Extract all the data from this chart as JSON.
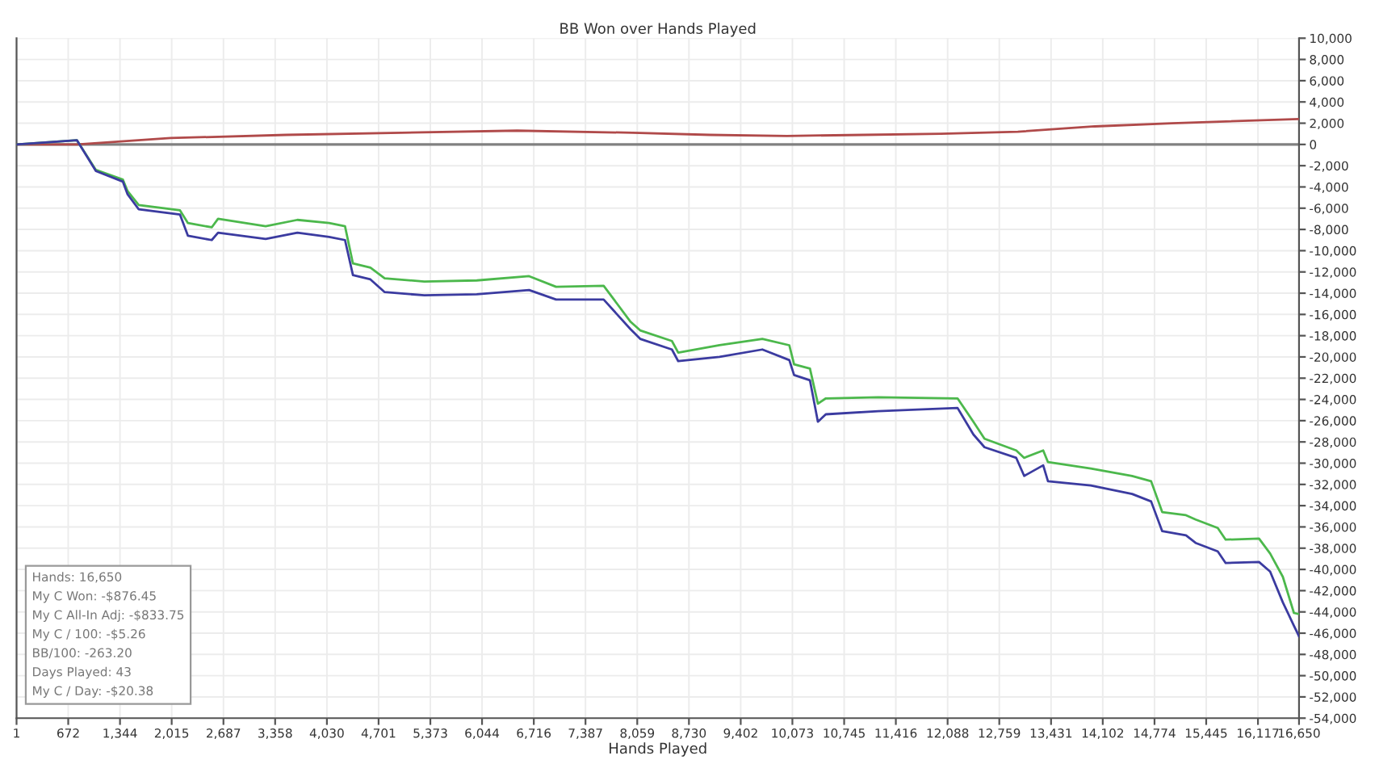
{
  "chart_data": {
    "type": "line",
    "title": "BB Won over Hands Played",
    "xlabel": "Hands Played",
    "xlim": [
      1,
      16650
    ],
    "xticks": [
      1,
      {
        "value": 672,
        "label": "672"
      },
      {
        "value": 1344,
        "label": "1,344"
      },
      {
        "value": 2015,
        "label": "2,015"
      },
      {
        "value": 2687,
        "label": "2,687"
      },
      {
        "value": 3358,
        "label": "3,358"
      },
      {
        "value": 4030,
        "label": "4,030"
      },
      {
        "value": 4701,
        "label": "4,701"
      },
      {
        "value": 5373,
        "label": "5,373"
      },
      {
        "value": 6044,
        "label": "6,044"
      },
      {
        "value": 6716,
        "label": "6,716"
      },
      {
        "value": 7387,
        "label": "7,387"
      },
      {
        "value": 8059,
        "label": "8,059"
      },
      {
        "value": 8730,
        "label": "8,730"
      },
      {
        "value": 9402,
        "label": "9,402"
      },
      {
        "value": 10073,
        "label": "10,073"
      },
      {
        "value": 10745,
        "label": "10,745"
      },
      {
        "value": 11416,
        "label": "11,416"
      },
      {
        "value": 12088,
        "label": "12,088"
      },
      {
        "value": 12759,
        "label": "12,759"
      },
      {
        "value": 13431,
        "label": "13,431"
      },
      {
        "value": 14102,
        "label": "14,102"
      },
      {
        "value": 14774,
        "label": "14,774"
      },
      {
        "value": 15445,
        "label": "15,445"
      },
      {
        "value": 16117,
        "label": "16,117"
      },
      {
        "value": 16650,
        "label": "16,650"
      }
    ],
    "ylim": [
      -54000,
      10000
    ],
    "yticks": [
      {
        "value": 10000,
        "label": "10,000"
      },
      {
        "value": 8000,
        "label": "8,000"
      },
      {
        "value": 6000,
        "label": "6,000"
      },
      {
        "value": 4000,
        "label": "4,000"
      },
      {
        "value": 2000,
        "label": "2,000"
      },
      0,
      {
        "value": -2000,
        "label": "-2,000"
      },
      {
        "value": -4000,
        "label": "-4,000"
      },
      {
        "value": -6000,
        "label": "-6,000"
      },
      {
        "value": -8000,
        "label": "-8,000"
      },
      {
        "value": -10000,
        "label": "-10,000"
      },
      {
        "value": -12000,
        "label": "-12,000"
      },
      {
        "value": -14000,
        "label": "-14,000"
      },
      {
        "value": -16000,
        "label": "-16,000"
      },
      {
        "value": -18000,
        "label": "-18,000"
      },
      {
        "value": -20000,
        "label": "-20,000"
      },
      {
        "value": -22000,
        "label": "-22,000"
      },
      {
        "value": -24000,
        "label": "-24,000"
      },
      {
        "value": -26000,
        "label": "-26,000"
      },
      {
        "value": -28000,
        "label": "-28,000"
      },
      {
        "value": -30000,
        "label": "-30,000"
      },
      {
        "value": -32000,
        "label": "-32,000"
      },
      {
        "value": -34000,
        "label": "-34,000"
      },
      {
        "value": -36000,
        "label": "-36,000"
      },
      {
        "value": -38000,
        "label": "-38,000"
      },
      {
        "value": -40000,
        "label": "-40,000"
      },
      {
        "value": -42000,
        "label": "-42,000"
      },
      {
        "value": -44000,
        "label": "-44,000"
      },
      {
        "value": -46000,
        "label": "-46,000"
      },
      {
        "value": -48000,
        "label": "-48,000"
      },
      {
        "value": -50000,
        "label": "-50,000"
      },
      {
        "value": -52000,
        "label": "-52,000"
      },
      {
        "value": -54000,
        "label": "-54,000"
      }
    ],
    "grid": true,
    "marker": "none",
    "line_style": "solid",
    "ref_lines": [
      {
        "axis": "y",
        "value": 0,
        "label": null,
        "color": "#808080"
      }
    ],
    "series": [
      {
        "color": "#b04a4a",
        "x": [
          1,
          784,
          2000,
          3500,
          5000,
          6500,
          8000,
          9000,
          10000,
          11000,
          12000,
          13000,
          14000,
          15000,
          16650
        ],
        "values": [
          0,
          0,
          600,
          900,
          1100,
          1300,
          1100,
          900,
          800,
          900,
          1000,
          1200,
          1700,
          2000,
          2400
        ]
      },
      {
        "color": "#4cb84c",
        "x": [
          1,
          784,
          1031,
          1381,
          1443,
          1587,
          2123,
          2226,
          2535,
          2617,
          3235,
          3647,
          4059,
          4265,
          4368,
          4595,
          4780,
          5295,
          5975,
          6655,
          7005,
          7623,
          7973,
          8097,
          8509,
          8591,
          9127,
          9683,
          10033,
          10095,
          10301,
          10404,
          10507,
          11187,
          12217,
          12423,
          12567,
          12979,
          13082,
          13329,
          13391,
          13947,
          14483,
          14730,
          14874,
          15183,
          15307,
          15595,
          15698,
          16131,
          16275,
          16440,
          16584,
          16650
        ],
        "values": [
          0,
          400,
          -2400,
          -3300,
          -4400,
          -5700,
          -6200,
          -7400,
          -7800,
          -7000,
          -7700,
          -7100,
          -7400,
          -7700,
          -11200,
          -11600,
          -12600,
          -12900,
          -12800,
          -12400,
          -13400,
          -13300,
          -16700,
          -17500,
          -18500,
          -19600,
          -18900,
          -18300,
          -18900,
          -20700,
          -21100,
          -24400,
          -23900,
          -23800,
          -23900,
          -26100,
          -27700,
          -28800,
          -29500,
          -28800,
          -29900,
          -30500,
          -31200,
          -31700,
          -34600,
          -34900,
          -35300,
          -36100,
          -37200,
          -37100,
          -38500,
          -40700,
          -44100,
          -44200
        ]
      },
      {
        "color": "#3b3ba0",
        "x": [
          1,
          784,
          1031,
          1381,
          1443,
          1587,
          2123,
          2226,
          2535,
          2617,
          3235,
          3647,
          4059,
          4265,
          4368,
          4595,
          4780,
          5295,
          5975,
          6655,
          7005,
          7623,
          7973,
          8097,
          8509,
          8591,
          9127,
          9683,
          10033,
          10095,
          10301,
          10404,
          10507,
          11187,
          12217,
          12423,
          12567,
          12979,
          13082,
          13329,
          13391,
          13947,
          14483,
          14730,
          14874,
          15183,
          15307,
          15595,
          15698,
          16131,
          16275,
          16440,
          16584,
          16650
        ],
        "values": [
          0,
          400,
          -2500,
          -3500,
          -4700,
          -6100,
          -6600,
          -8600,
          -9000,
          -8300,
          -8900,
          -8300,
          -8700,
          -9000,
          -12300,
          -12700,
          -13900,
          -14200,
          -14100,
          -13700,
          -14600,
          -14600,
          -17400,
          -18300,
          -19300,
          -20400,
          -20000,
          -19300,
          -20300,
          -21700,
          -22200,
          -26100,
          -25400,
          -25100,
          -24800,
          -27300,
          -28500,
          -29500,
          -31200,
          -30200,
          -31700,
          -32100,
          -32900,
          -33600,
          -36400,
          -36800,
          -37500,
          -38300,
          -39400,
          -39300,
          -40200,
          -43100,
          -45300,
          -46300
        ]
      }
    ],
    "annotations": [
      "Hands: 16,650",
      "My C Won: -$876.45",
      "My C All-In Adj: -$833.75",
      "My C / 100: -$5.26",
      "BB/100: -263.20",
      "Days Played: 43",
      "My C / Day: -$20.38"
    ]
  }
}
